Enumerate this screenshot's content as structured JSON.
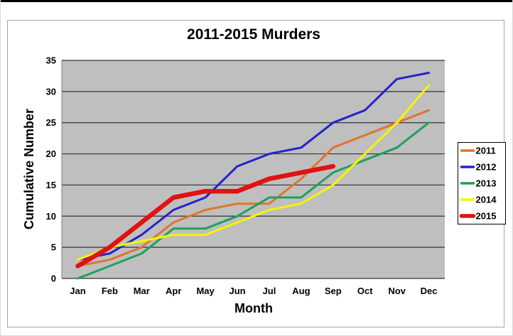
{
  "chart": {
    "title": "2011-2015 Murders",
    "x_axis_title": "Month",
    "y_axis_title": "Cumulative Number"
  },
  "chart_data": {
    "type": "line",
    "title": "2011-2015 Murders",
    "xlabel": "Month",
    "ylabel": "Cumulative Number",
    "categories": [
      "Jan",
      "Feb",
      "Mar",
      "Apr",
      "May",
      "Jun",
      "Jul",
      "Aug",
      "Sep",
      "Oct",
      "Nov",
      "Dec"
    ],
    "ylim": [
      0,
      35
    ],
    "y_ticks": [
      0,
      5,
      10,
      15,
      20,
      25,
      30,
      35
    ],
    "grid": true,
    "plot_background": "#BFBFBF",
    "gridline_color": "#333333",
    "legend_position": "right",
    "series": [
      {
        "name": "2011",
        "color": "#E0752C",
        "thick": false,
        "values": [
          2,
          3,
          5,
          9,
          11,
          12,
          12,
          16,
          21,
          23,
          25,
          27
        ]
      },
      {
        "name": "2012",
        "color": "#2222CC",
        "thick": false,
        "values": [
          3,
          4,
          7,
          11,
          13,
          18,
          20,
          21,
          25,
          27,
          32,
          33
        ]
      },
      {
        "name": "2013",
        "color": "#1FA05C",
        "thick": false,
        "values": [
          0,
          2,
          4,
          8,
          8,
          10,
          13,
          13,
          17,
          19,
          21,
          25
        ]
      },
      {
        "name": "2014",
        "color": "#F5F500",
        "thick": false,
        "values": [
          3,
          5,
          6,
          7,
          7,
          9,
          11,
          12,
          15,
          20,
          25,
          31
        ]
      },
      {
        "name": "2015",
        "color": "#E01212",
        "thick": true,
        "values": [
          2,
          5,
          9,
          13,
          14,
          14,
          16,
          17,
          18,
          null,
          null,
          null
        ]
      }
    ]
  }
}
